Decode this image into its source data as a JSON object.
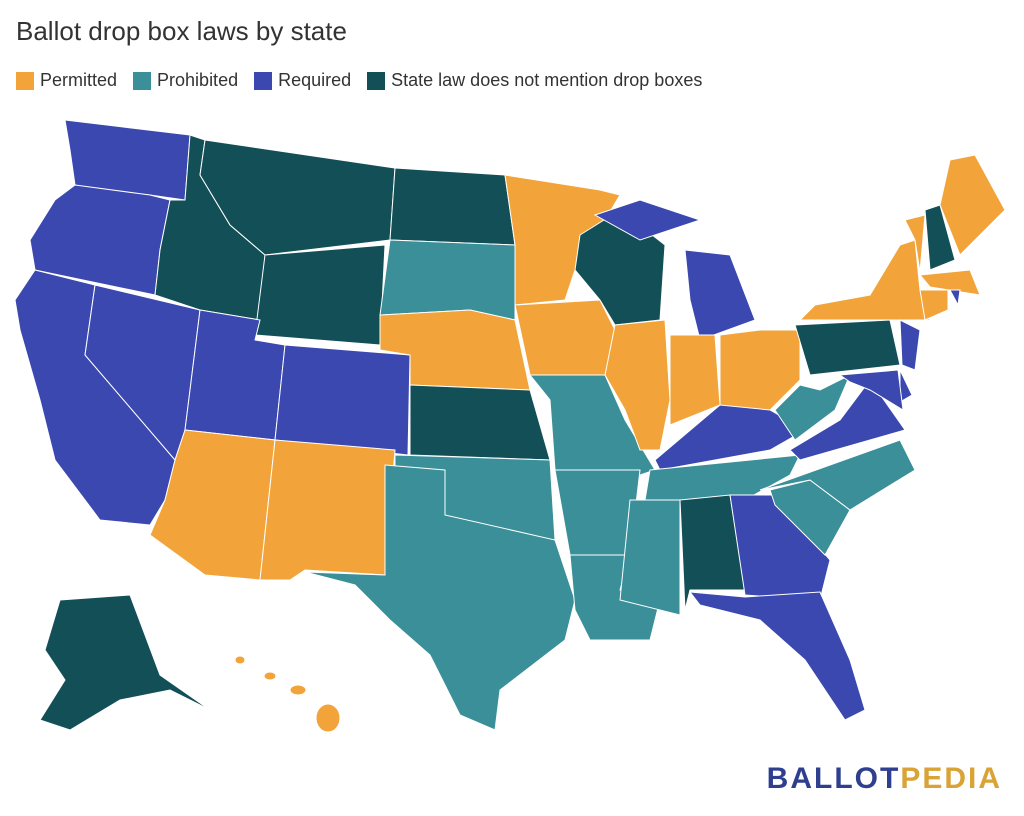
{
  "title": "Ballot drop box laws by state",
  "legend": [
    {
      "name": "Permitted",
      "color": "#f2a43a"
    },
    {
      "name": "Prohibited",
      "color": "#3a8f99"
    },
    {
      "name": "Required",
      "color": "#3a48b0"
    },
    {
      "name": "State law does not mention drop boxes",
      "color": "#134f57"
    }
  ],
  "logo": {
    "first": "BALLOT",
    "second": "PEDIA"
  }
}
